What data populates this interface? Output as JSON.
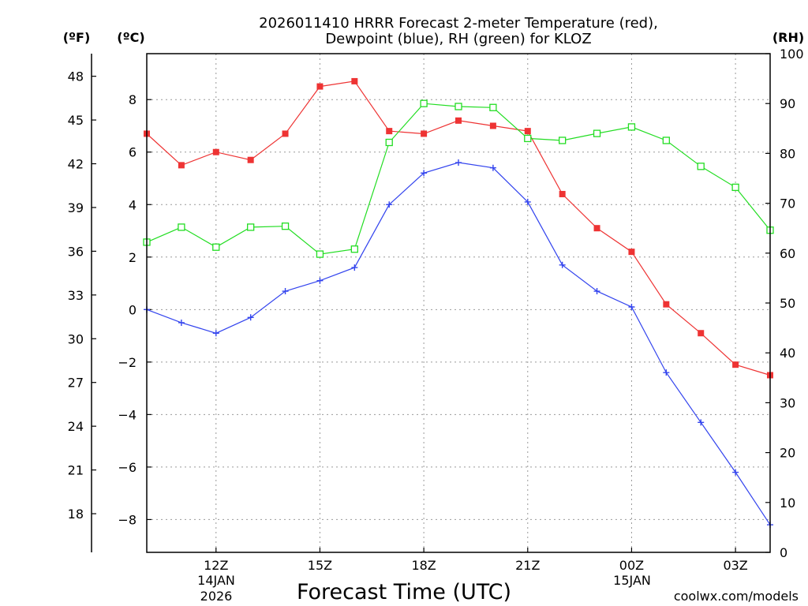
{
  "title_line1": "2026011410 HRRR Forecast 2-meter Temperature (red),",
  "title_line2": "Dewpoint (blue), RH (green) for KLOZ",
  "unit_f": "(ºF)",
  "unit_c": "(ºC)",
  "unit_rh": "(RH)",
  "xlabel": "Forecast Time (UTC)",
  "date_start_day": "14JAN",
  "date_start_year": "2026",
  "date_next_day": "15JAN",
  "credit": "coolwx.com/models",
  "colors": {
    "temp": "#ee3333",
    "dewpoint": "#3344ee",
    "rh": "#22dd22",
    "credit": "#ee3333",
    "grid": "#999999"
  },
  "chart_data": {
    "type": "line",
    "title": "2026011410 HRRR Forecast 2-meter Temperature (red), Dewpoint (blue), RH (green) for KLOZ",
    "xlabel": "Forecast Time (UTC)",
    "x_hours": [
      10,
      11,
      12,
      13,
      14,
      15,
      16,
      17,
      18,
      19,
      20,
      21,
      22,
      23,
      24,
      25,
      26,
      27,
      28
    ],
    "xlim": [
      10,
      28
    ],
    "x_ticks": [
      {
        "hour": 12,
        "label": "12Z"
      },
      {
        "hour": 15,
        "label": "15Z"
      },
      {
        "hour": 18,
        "label": "18Z"
      },
      {
        "hour": 21,
        "label": "21Z"
      },
      {
        "hour": 24,
        "label": "00Z"
      },
      {
        "hour": 27,
        "label": "03Z"
      }
    ],
    "ylim_c": [
      -9.25,
      9.75
    ],
    "yticks_c": [
      "-8",
      "-6",
      "-4",
      "-2",
      "0",
      "2",
      "4",
      "6",
      "8"
    ],
    "yticks_f": [
      "18",
      "21",
      "24",
      "27",
      "30",
      "33",
      "36",
      "39",
      "42",
      "45",
      "48"
    ],
    "ylim_rh": [
      0,
      100
    ],
    "yticks_rh": [
      "0",
      "10",
      "20",
      "30",
      "40",
      "50",
      "60",
      "70",
      "80",
      "90",
      "100"
    ],
    "series": [
      {
        "name": "Temperature (°C)",
        "key": "temp",
        "marker": "filled-square",
        "values": [
          6.7,
          5.5,
          6.0,
          5.7,
          6.7,
          8.5,
          8.7,
          6.8,
          6.7,
          7.2,
          7.0,
          6.8,
          4.4,
          3.1,
          2.2,
          0.2,
          -0.9,
          -2.1,
          -2.5
        ]
      },
      {
        "name": "Dewpoint (°C)",
        "key": "dewpoint",
        "marker": "plus",
        "values": [
          0.0,
          -0.5,
          -0.9,
          -0.3,
          0.7,
          1.1,
          1.6,
          4.0,
          5.2,
          5.6,
          5.4,
          4.1,
          1.7,
          0.7,
          0.1,
          -2.4,
          -4.3,
          -6.2,
          -8.2
        ]
      },
      {
        "name": "RH (%)",
        "key": "rh",
        "marker": "open-square",
        "values": [
          62.2,
          65.2,
          61.2,
          65.2,
          65.4,
          59.8,
          60.8,
          82.2,
          90.0,
          89.4,
          89.2,
          83.0,
          82.6,
          84.0,
          85.3,
          82.6,
          77.4,
          73.2,
          64.6
        ]
      }
    ]
  }
}
